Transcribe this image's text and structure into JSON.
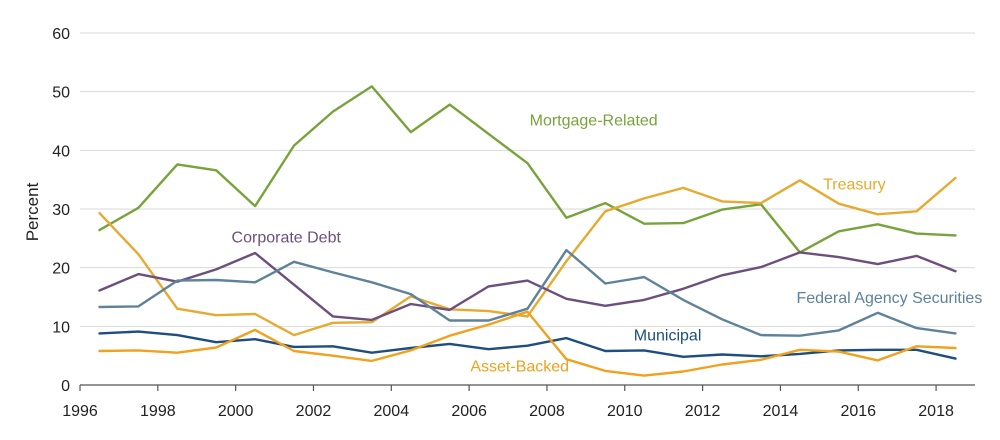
{
  "chart_data": {
    "type": "line",
    "title": "",
    "xlabel": "",
    "ylabel": "Percent",
    "xlim": [
      1996,
      2019
    ],
    "ylim": [
      0,
      60
    ],
    "grid": "horizontal",
    "x_ticks": [
      "1996",
      "1998",
      "2000",
      "2002",
      "2004",
      "2006",
      "2008",
      "2010",
      "2012",
      "2014",
      "2016",
      "2018"
    ],
    "y_ticks": [
      "0",
      "10",
      "20",
      "30",
      "40",
      "50",
      "60"
    ],
    "x": [
      1996.5,
      1997.5,
      1998.5,
      1999.5,
      2000.5,
      2001.5,
      2002.5,
      2003.5,
      2004.5,
      2005.5,
      2006.5,
      2007.5,
      2008.5,
      2009.5,
      2010.5,
      2011.5,
      2012.5,
      2013.5,
      2014.5,
      2015.5,
      2016.5,
      2017.5,
      2018.5
    ],
    "series": [
      {
        "name": "Mortgage-Related",
        "color": "#77a33a",
        "values": [
          26.4,
          30.2,
          37.6,
          36.6,
          30.5,
          40.8,
          46.6,
          50.9,
          43.1,
          47.8,
          42.8,
          37.8,
          28.5,
          31.0,
          27.5,
          27.6,
          29.9,
          30.8,
          22.6,
          26.2,
          27.4,
          25.8,
          25.5
        ]
      },
      {
        "name": "Treasury",
        "color": "#e5aa2f",
        "values": [
          29.3,
          22.3,
          13.0,
          11.9,
          12.1,
          8.5,
          10.6,
          10.7,
          15.1,
          12.9,
          12.6,
          11.7,
          21.1,
          29.6,
          31.8,
          33.6,
          31.3,
          31.0,
          34.9,
          30.9,
          29.1,
          29.6,
          35.3
        ]
      },
      {
        "name": "Corporate Debt",
        "color": "#6d4f7e",
        "values": [
          16.1,
          18.9,
          17.6,
          19.7,
          22.5,
          17.1,
          11.7,
          11.1,
          13.8,
          12.8,
          16.8,
          17.8,
          14.7,
          13.5,
          14.5,
          16.4,
          18.7,
          20.1,
          22.6,
          21.8,
          20.6,
          22.0,
          19.4
        ]
      },
      {
        "name": "Federal Agency Securities",
        "color": "#5d8299",
        "values": [
          13.3,
          13.4,
          17.8,
          17.9,
          17.5,
          21.0,
          19.2,
          17.5,
          15.5,
          11.0,
          11.0,
          13.0,
          23.0,
          17.3,
          18.4,
          14.5,
          11.2,
          8.5,
          8.4,
          9.3,
          12.3,
          9.7,
          8.8
        ]
      },
      {
        "name": "Municipal",
        "color": "#1e4d80",
        "values": [
          8.8,
          9.1,
          8.5,
          7.3,
          7.8,
          6.5,
          6.6,
          5.5,
          6.3,
          7.0,
          6.1,
          6.7,
          8.0,
          5.8,
          5.9,
          4.8,
          5.2,
          4.9,
          5.3,
          5.9,
          6.0,
          6.0,
          4.5
        ]
      },
      {
        "name": "Asset-Backed",
        "color": "#f0a11e",
        "values": [
          5.8,
          5.9,
          5.5,
          6.4,
          9.4,
          5.8,
          5.0,
          4.1,
          5.9,
          8.4,
          10.3,
          12.5,
          4.4,
          2.4,
          1.6,
          2.3,
          3.5,
          4.3,
          6.0,
          5.7,
          4.2,
          6.6,
          6.3
        ]
      }
    ],
    "series_labels": [
      {
        "series": "Mortgage-Related",
        "text": "Mortgage-Related",
        "at_x": 2009.2,
        "at_y": 44.2
      },
      {
        "series": "Treasury",
        "text": "Treasury",
        "at_x": 2015.9,
        "at_y": 33.3
      },
      {
        "series": "Corporate Debt",
        "text": "Corporate Debt",
        "at_x": 2001.3,
        "at_y": 24.3
      },
      {
        "series": "Federal Agency Securities",
        "text": "Federal Agency Securities",
        "at_x": 2016.8,
        "at_y": 14.0
      },
      {
        "series": "Municipal",
        "text": "Municipal",
        "at_x": 2011.1,
        "at_y": 7.6
      },
      {
        "series": "Asset-Backed",
        "text": "Asset-Backed",
        "at_x": 2007.3,
        "at_y": 2.3
      }
    ]
  }
}
